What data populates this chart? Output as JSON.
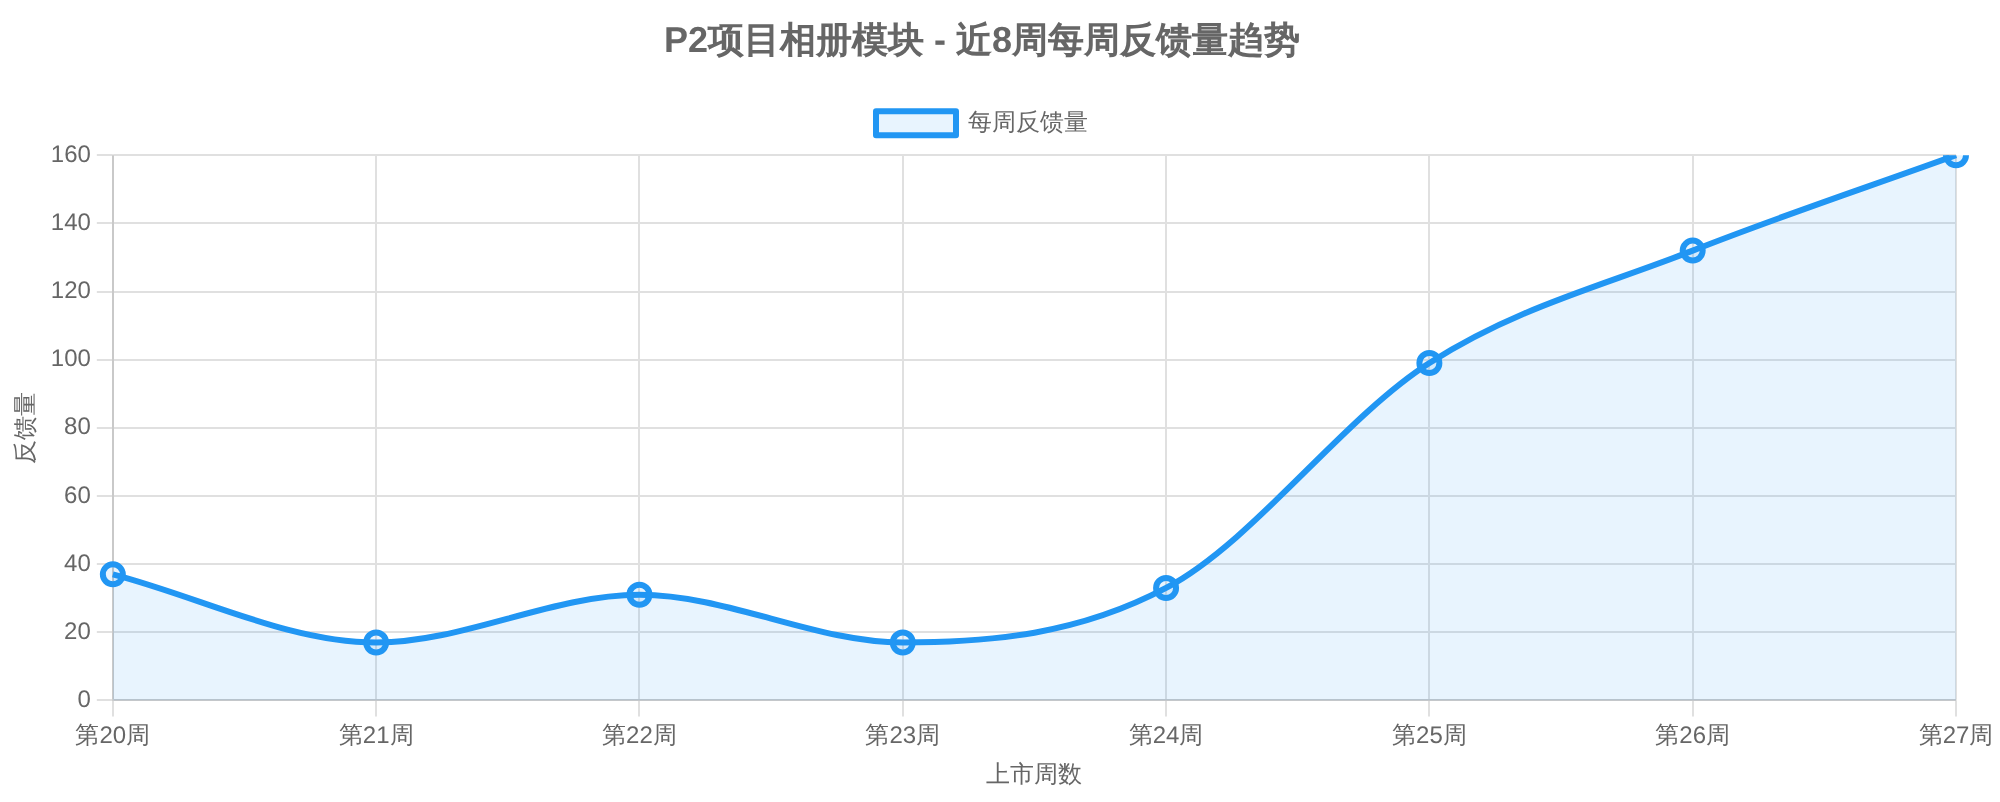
{
  "chart_data": {
    "type": "area",
    "title": "P2项目相册模块 - 近8周每周反馈量趋势",
    "xlabel": "上市周数",
    "ylabel": "反馈量",
    "categories": [
      "第20周",
      "第21周",
      "第22周",
      "第23周",
      "第24周",
      "第25周",
      "第26周",
      "第27周"
    ],
    "series": [
      {
        "name": "每周反馈量",
        "color": "#2196f3",
        "values": [
          37,
          17,
          31,
          17,
          33,
          99,
          132,
          160
        ]
      }
    ],
    "ylim": [
      0,
      160
    ],
    "yticks": [
      0,
      20,
      40,
      60,
      80,
      100,
      120,
      140,
      160
    ],
    "grid": true,
    "legend": "top",
    "marker": "circle",
    "line_style": "solid"
  }
}
